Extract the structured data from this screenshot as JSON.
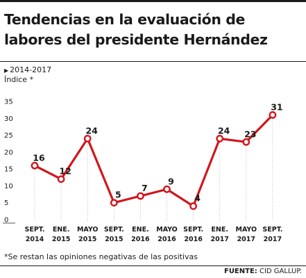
{
  "title": "Tendencias en la evaluación de labores del presidente Hernández",
  "range_label": "2014-2017",
  "unit_label": "Índice *",
  "footnote": "*Se restan las opiniones negativas de las positivas",
  "source_label": "FUENTE:",
  "source_value": "CID GALLUP.",
  "colors": {
    "line": "#d0161c",
    "marker_fill": "#ffffff",
    "text": "#1a1a1a",
    "grid": "#bdbdbd"
  },
  "chart_data": {
    "type": "line",
    "title": "Tendencias en la evaluación de labores del presidente Hernández",
    "xlabel": "",
    "ylabel": "Índice *",
    "categories": [
      [
        "SEPT.",
        "2014"
      ],
      [
        "ENE.",
        "2015"
      ],
      [
        "MAYO",
        "2015"
      ],
      [
        "SEPT.",
        "2015"
      ],
      [
        "ENE.",
        "2016"
      ],
      [
        "MAYO",
        "2016"
      ],
      [
        "SEPT.",
        "2016"
      ],
      [
        "ENE.",
        "2017"
      ],
      [
        "MAYO",
        "2017"
      ],
      [
        "SEPT.",
        "2017"
      ]
    ],
    "values": [
      16,
      12,
      24,
      5,
      7,
      9,
      4,
      24,
      23,
      31
    ],
    "ylim": [
      0,
      35
    ],
    "yticks": [
      0,
      5,
      10,
      15,
      20,
      25,
      30,
      35
    ],
    "grid": "vertical dotted lines at data points",
    "legend": "none"
  }
}
